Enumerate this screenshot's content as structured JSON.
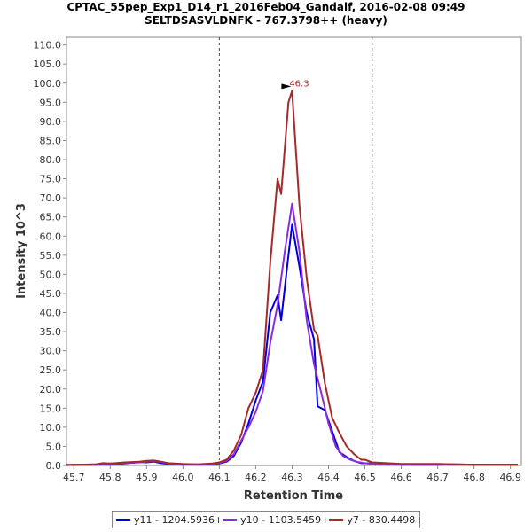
{
  "chart_data": {
    "type": "line",
    "title": "CPTAC_55pep_Exp1_D14_r1_2016Feb04_Gandalf, 2016-02-08 09:49",
    "subtitle": "SELTDSASVLDNFK - 767.3798++ (heavy)",
    "xlabel": "Retention Time",
    "ylabel": "Intensity 10^3",
    "xlim": [
      45.68,
      46.93
    ],
    "ylim": [
      0,
      112
    ],
    "x_ticks": [
      "45.7",
      "45.8",
      "45.9",
      "46.0",
      "46.1",
      "46.2",
      "46.3",
      "46.4",
      "46.5",
      "46.6",
      "46.7",
      "46.8",
      "46.9"
    ],
    "y_ticks": [
      "0.0",
      "5.0",
      "10.0",
      "15.0",
      "20.0",
      "25.0",
      "30.0",
      "35.0",
      "40.0",
      "45.0",
      "50.0",
      "55.0",
      "60.0",
      "65.0",
      "70.0",
      "75.0",
      "80.0",
      "85.0",
      "90.0",
      "95.0",
      "100.0",
      "105.0",
      "110.0"
    ],
    "boundaries": [
      46.1,
      46.52
    ],
    "peak_label": "46.3",
    "peak_x": 46.3,
    "peak_y": 98,
    "series": [
      {
        "name": "y11 - 1204.5936+",
        "color": "#0000dd",
        "x": [
          45.68,
          45.72,
          45.76,
          45.8,
          45.84,
          45.88,
          45.9,
          45.92,
          45.94,
          45.96,
          46.0,
          46.04,
          46.08,
          46.1,
          46.12,
          46.14,
          46.16,
          46.18,
          46.2,
          46.22,
          46.24,
          46.26,
          46.27,
          46.29,
          46.3,
          46.32,
          46.34,
          46.36,
          46.37,
          46.39,
          46.41,
          46.43,
          46.45,
          46.47,
          46.49,
          46.52,
          46.56,
          46.6,
          46.65,
          46.7,
          46.74,
          46.8,
          46.85,
          46.9,
          46.92
        ],
        "y": [
          0.1,
          0.2,
          0.2,
          0.3,
          0.5,
          0.9,
          0.8,
          1.0,
          0.6,
          0.4,
          0.3,
          0.2,
          0.3,
          0.5,
          1.0,
          2.5,
          6.0,
          11.0,
          17.0,
          22.0,
          40.0,
          44.5,
          38.0,
          55.0,
          63.0,
          52.0,
          40.0,
          33.0,
          15.5,
          14.5,
          9.0,
          3.5,
          2.2,
          1.2,
          0.6,
          0.5,
          0.3,
          0.2,
          0.2,
          0.2,
          0.3,
          0.2,
          0.2,
          0.2,
          0.2
        ]
      },
      {
        "name": "y10 - 1103.5459+",
        "color": "#8a2be2",
        "x": [
          45.68,
          45.72,
          45.76,
          45.8,
          45.84,
          45.88,
          45.9,
          45.92,
          45.94,
          45.96,
          46.0,
          46.04,
          46.08,
          46.1,
          46.12,
          46.14,
          46.16,
          46.18,
          46.2,
          46.22,
          46.24,
          46.26,
          46.28,
          46.3,
          46.32,
          46.34,
          46.36,
          46.38,
          46.4,
          46.42,
          46.44,
          46.46,
          46.48,
          46.5,
          46.52,
          46.56,
          46.6,
          46.65,
          46.7,
          46.75,
          46.8,
          46.85,
          46.9,
          46.92
        ],
        "y": [
          0.1,
          0.2,
          0.3,
          0.4,
          0.6,
          0.8,
          1.0,
          1.1,
          0.9,
          0.5,
          0.3,
          0.3,
          0.4,
          0.6,
          1.2,
          3.0,
          6.5,
          10.0,
          14.0,
          19.5,
          32.0,
          42.0,
          56.0,
          68.5,
          56.0,
          38.0,
          26.5,
          19.0,
          11.0,
          5.0,
          2.5,
          1.5,
          0.9,
          0.6,
          0.4,
          0.3,
          0.3,
          0.2,
          0.2,
          0.2,
          0.2,
          0.2,
          0.2,
          0.1
        ]
      },
      {
        "name": "y7 - 830.4498+",
        "color": "#a52a2a",
        "x": [
          45.68,
          45.72,
          45.76,
          45.78,
          45.8,
          45.84,
          45.88,
          45.9,
          45.92,
          45.94,
          45.96,
          46.0,
          46.04,
          46.08,
          46.1,
          46.12,
          46.14,
          46.16,
          46.18,
          46.2,
          46.22,
          46.24,
          46.26,
          46.27,
          46.29,
          46.3,
          46.32,
          46.34,
          46.36,
          46.37,
          46.39,
          46.41,
          46.43,
          46.45,
          46.47,
          46.49,
          46.5,
          46.52,
          46.56,
          46.6,
          46.65,
          46.7,
          46.75,
          46.8,
          46.85,
          46.9,
          46.92
        ],
        "y": [
          0.2,
          0.2,
          0.3,
          0.6,
          0.5,
          0.8,
          1.0,
          1.2,
          1.3,
          1.0,
          0.6,
          0.4,
          0.3,
          0.5,
          0.8,
          1.5,
          4.0,
          8.0,
          15.0,
          19.0,
          25.0,
          53.0,
          75.0,
          71.0,
          95.0,
          98.0,
          68.0,
          49.0,
          35.5,
          34.0,
          21.5,
          12.5,
          8.5,
          5.0,
          3.0,
          1.5,
          1.5,
          0.8,
          0.6,
          0.4,
          0.4,
          0.4,
          0.3,
          0.2,
          0.2,
          0.2,
          0.2
        ]
      }
    ],
    "grid": false,
    "legend_position": "bottom"
  }
}
